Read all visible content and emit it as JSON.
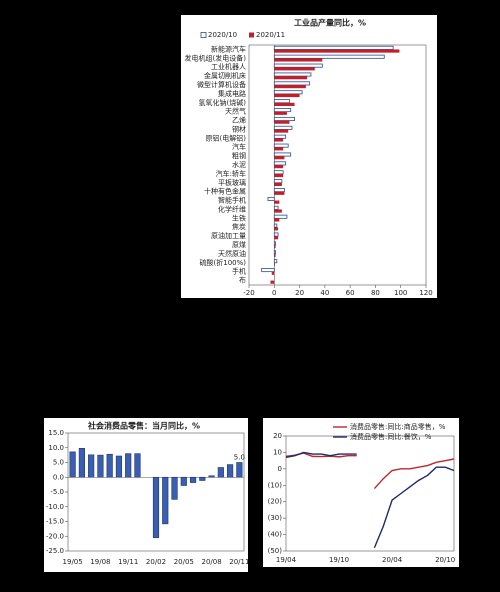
{
  "chart_data": [
    {
      "type": "hbar",
      "title": "工业品产量同比，%",
      "categories": [
        "新能源汽车",
        "发电机组(发电设备)",
        "工业机器人",
        "金属切削机床",
        "微型计算机设备",
        "集成电路",
        "氢氧化钠(烧碱)",
        "天然气",
        "乙烯",
        "钢材",
        "原铝(电解铝)",
        "汽车",
        "粗钢",
        "水泥",
        "汽车:轿车",
        "平板玻璃",
        "十种有色金属",
        "智能手机",
        "化学纤维",
        "生铁",
        "焦炭",
        "原油加工量",
        "原煤",
        "天然原油",
        "硫酸(折100%)",
        "手机",
        "布"
      ],
      "series": [
        {
          "name": "2020/10",
          "color": "#2b4b8c",
          "values": [
            94,
            87,
            38,
            29,
            28,
            22,
            12,
            13,
            16,
            14,
            9,
            11,
            13,
            9,
            7,
            6,
            8,
            -5,
            3,
            10,
            2,
            3,
            1,
            1,
            2,
            -10,
            0
          ]
        },
        {
          "name": "2020/11",
          "color": "#c0202a",
          "values": [
            99,
            38,
            32,
            26,
            25,
            20,
            16,
            10,
            12,
            11,
            7,
            7,
            8,
            7,
            7,
            6,
            8,
            4,
            6,
            4,
            3,
            3,
            1,
            1,
            0.5,
            -2,
            -3
          ]
        }
      ],
      "xlim": [
        -20,
        120
      ],
      "xticks": [
        -20,
        0,
        20,
        40,
        60,
        80,
        100,
        120
      ]
    },
    {
      "type": "bar",
      "title": "社会消费品零售：当月同比，%",
      "categories": [
        "19/05",
        null,
        null,
        "19/08",
        null,
        null,
        "19/11",
        null,
        null,
        "20/02",
        null,
        null,
        "20/05",
        null,
        null,
        "20/08",
        null,
        null,
        "20/11"
      ],
      "values": [
        8.6,
        9.8,
        7.6,
        7.5,
        7.8,
        7.2,
        8.0,
        8.0,
        null,
        -20.5,
        -15.8,
        -7.5,
        -2.8,
        -1.8,
        -1.1,
        0.5,
        3.3,
        4.3,
        5.0
      ],
      "value_labels": [
        null,
        null,
        null,
        null,
        null,
        null,
        null,
        null,
        null,
        null,
        null,
        null,
        null,
        null,
        null,
        null,
        null,
        null,
        "5.0"
      ],
      "color": "#3a5fb0",
      "ylim": [
        -25,
        15
      ],
      "yticks": [
        {
          "value": 15,
          "label": "15.0"
        },
        {
          "value": 10,
          "label": "10.0"
        },
        {
          "value": 5,
          "label": "5.0"
        },
        {
          "value": 0,
          "label": "0.0"
        },
        {
          "value": -5,
          "label": "-5.0"
        },
        {
          "value": -10,
          "label": "-10.0"
        },
        {
          "value": -15,
          "label": "-15.0"
        },
        {
          "value": -20,
          "label": "-20.0"
        },
        {
          "value": -25,
          "label": "-25.0"
        }
      ]
    },
    {
      "type": "line",
      "categories": [
        "19/04",
        null,
        null,
        null,
        null,
        null,
        "19/10",
        null,
        null,
        null,
        null,
        null,
        "20/04",
        null,
        null,
        null,
        null,
        null,
        "20/10",
        null
      ],
      "series": [
        {
          "name": "消费品零售:同比:商品零售，%",
          "color": "#c0262d",
          "values": [
            7.6,
            8.3,
            9.6,
            7.6,
            7.5,
            7.7,
            7.3,
            8.0,
            8.0,
            null,
            -12,
            -6,
            -1,
            0,
            0,
            1,
            2,
            4,
            5,
            6
          ]
        },
        {
          "name": "消费品零售:同比:餐饮，%",
          "color": "#1a2a6c",
          "values": [
            7,
            8,
            10,
            9,
            9,
            8,
            9,
            9,
            9,
            null,
            -48,
            -35,
            -19,
            -15,
            -11,
            -7,
            -4,
            1,
            1,
            -1
          ]
        }
      ],
      "ylim": [
        -50,
        20
      ],
      "yticks": [
        20,
        10,
        0,
        {
          "value": -10,
          "label": "(10)"
        },
        {
          "value": -20,
          "label": "(20)"
        },
        {
          "value": -30,
          "label": "(30)"
        },
        {
          "value": -40,
          "label": "(40)"
        },
        {
          "value": -50,
          "label": "(50)"
        }
      ]
    }
  ]
}
